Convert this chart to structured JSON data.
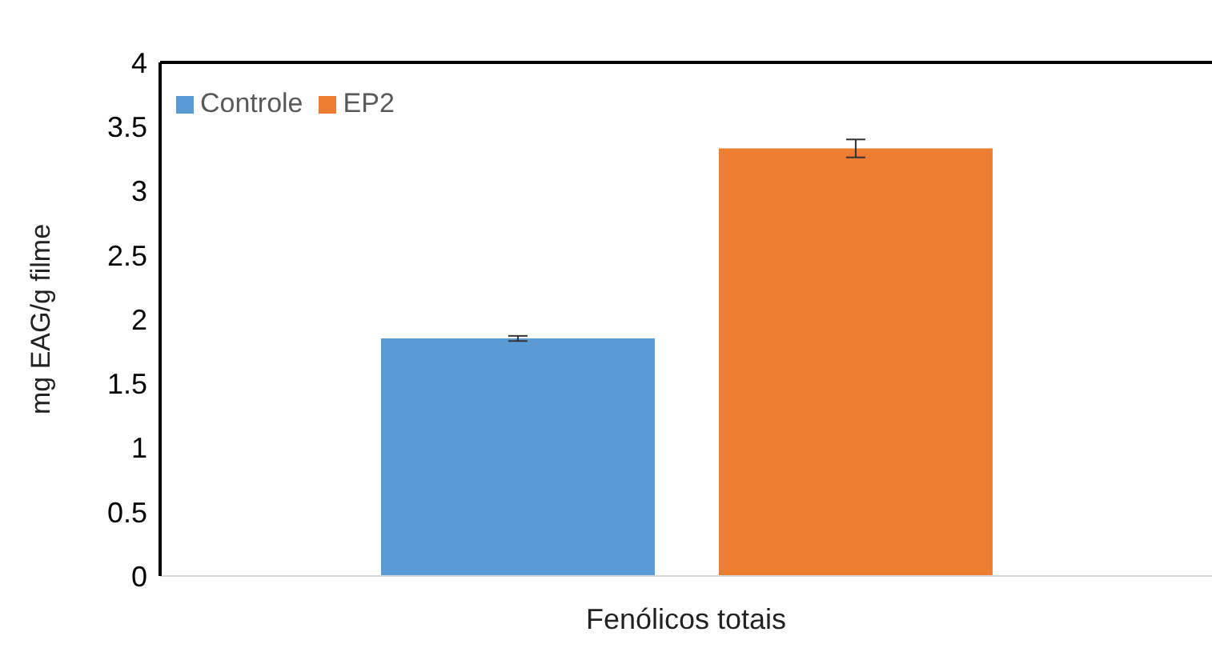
{
  "chart_data": {
    "type": "bar",
    "ylabel": "mg EAG/g filme",
    "categories": [
      "Fenólicos totais"
    ],
    "series": [
      {
        "name": "Controle",
        "color": "#5b9bd5",
        "values": [
          1.85
        ],
        "errors": [
          0.02
        ]
      },
      {
        "name": "EP2",
        "color": "#ed7d31",
        "values": [
          3.33
        ],
        "errors": [
          0.07
        ]
      }
    ],
    "ylim": [
      0,
      4
    ],
    "yticks": [
      0,
      0.5,
      1,
      1.5,
      2,
      2.5,
      3,
      3.5,
      4
    ],
    "grid": false,
    "legend": "top left"
  }
}
